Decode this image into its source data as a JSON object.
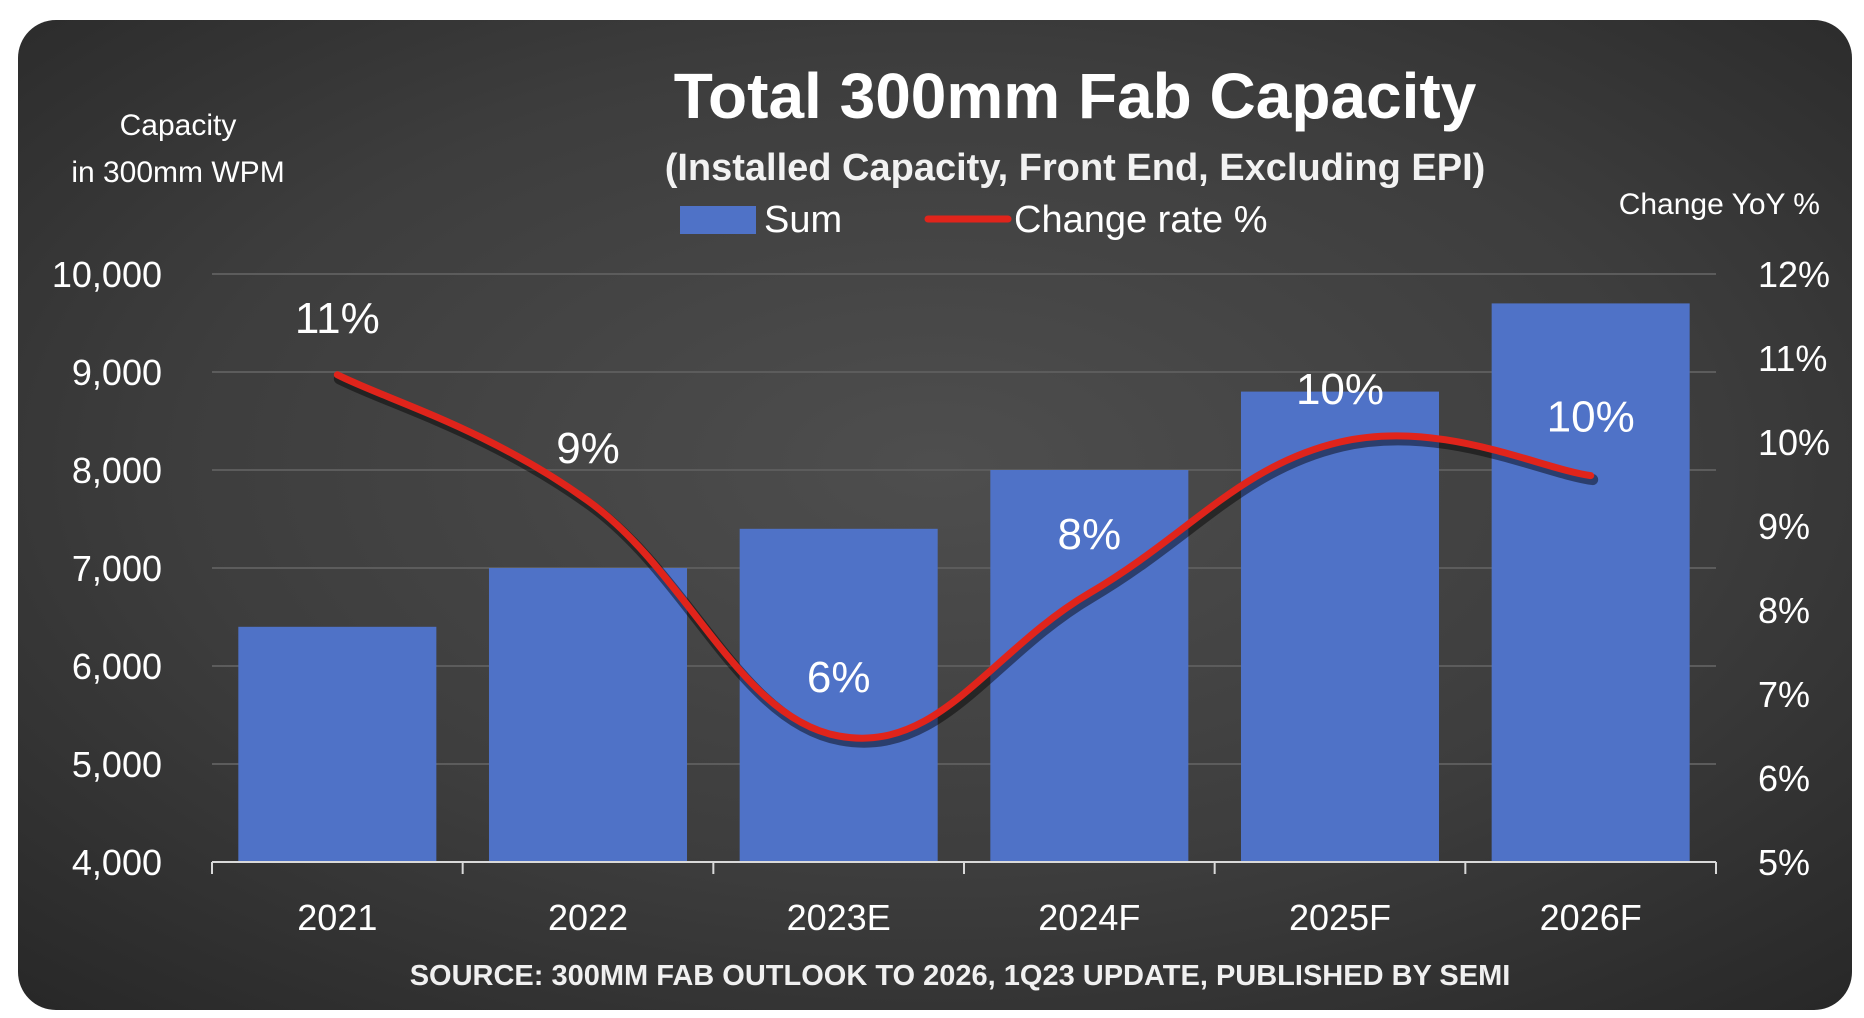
{
  "chart_data": {
    "type": "bar",
    "title": "Total 300mm Fab Capacity",
    "subtitle": "(Installed Capacity, Front End, Excluding EPI)",
    "ylabel_lines": [
      "Capacity",
      "in 300mm WPM"
    ],
    "y2label": "Change YoY %",
    "categories": [
      "2021",
      "2022",
      "2023E",
      "2024F",
      "2025F",
      "2026F"
    ],
    "ylim": [
      4000,
      10000
    ],
    "yticks": [
      4000,
      5000,
      6000,
      7000,
      8000,
      9000,
      10000
    ],
    "ytick_labels": [
      "4,000",
      "5,000",
      "6,000",
      "7,000",
      "8,000",
      "9,000",
      "10,000"
    ],
    "y2lim": [
      5,
      12
    ],
    "y2ticks": [
      5,
      6,
      7,
      8,
      9,
      10,
      11,
      12
    ],
    "y2tick_labels": [
      "5%",
      "6%",
      "7%",
      "8%",
      "9%",
      "10%",
      "11%",
      "12%"
    ],
    "series": [
      {
        "name": "Sum",
        "type": "bar",
        "axis": "left",
        "color": "#4f72c7",
        "values": [
          6400,
          7000,
          7400,
          8000,
          8800,
          9700
        ]
      },
      {
        "name": "Change rate %",
        "type": "line",
        "axis": "right",
        "color": "#e0241b",
        "smooth": true,
        "values": [
          10.8,
          9.3,
          6.5,
          8.2,
          10.0,
          9.6
        ],
        "data_labels": [
          "11%",
          "9%",
          "6%",
          "8%",
          "10%",
          "10%"
        ]
      }
    ],
    "legend_position": "top-center",
    "grid": true,
    "source": "SOURCE: 300MM FAB OUTLOOK TO 2026, 1Q23 UPDATE, PUBLISHED BY SEMI"
  }
}
